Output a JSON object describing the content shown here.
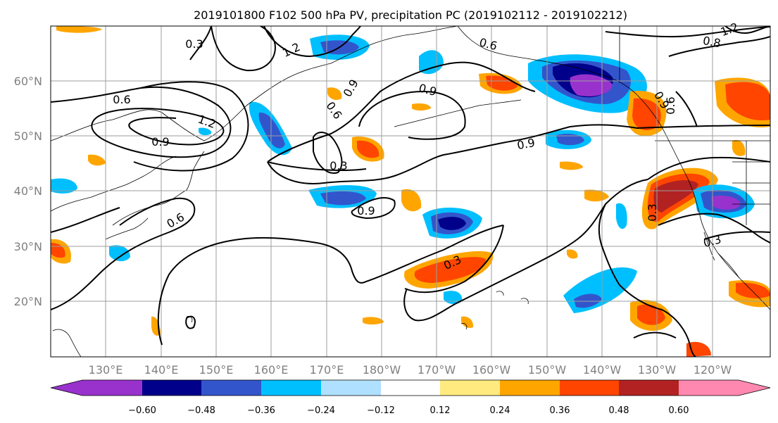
{
  "title": "2019101800 F102 500 hPa PV, precipitation PC (2019102112 - 2019102212)",
  "map": {
    "lat_labels": [
      "60°N",
      "50°N",
      "40°N",
      "30°N",
      "20°N"
    ],
    "lon_labels": [
      "130°E",
      "140°E",
      "150°E",
      "160°E",
      "170°E",
      "180°W",
      "170°W",
      "160°W",
      "150°W",
      "140°W",
      "130°W",
      "120°W"
    ],
    "contour_labels": [
      "0.3",
      "1.2",
      "0.6",
      "0.9",
      "0.6",
      "1.2",
      "0.9",
      "0.9",
      "0.6",
      "0.3",
      "0.9",
      "0.6",
      "0.8",
      "1.2",
      "0.9",
      "0.9",
      "0.6",
      "0.3",
      "0.3",
      "0.3"
    ]
  },
  "colorbar": {
    "ticks": [
      "−0.60",
      "−0.48",
      "−0.36",
      "−0.24",
      "−0.12",
      "0.12",
      "0.24",
      "0.36",
      "0.48",
      "0.60"
    ],
    "colors": [
      "#9932CC",
      "#00008B",
      "#3355CC",
      "#00BFFF",
      "#B0E0FF",
      "#FFFFFF",
      "#FFEA80",
      "#FFA500",
      "#FF4500",
      "#B22222",
      "#FF88B0"
    ]
  }
}
